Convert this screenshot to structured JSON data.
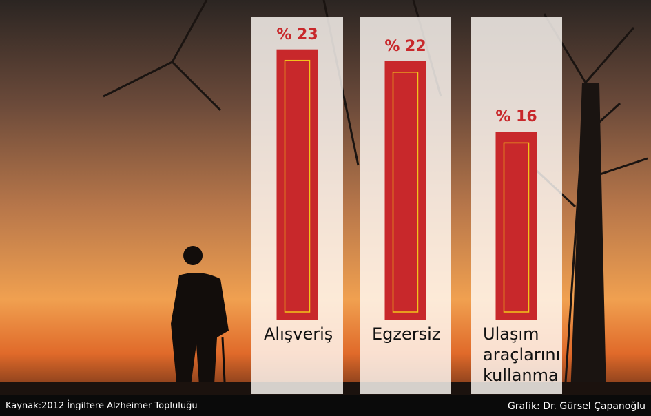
{
  "chart_data": {
    "type": "bar",
    "categories": [
      "Alışveriş",
      "Egzersiz",
      "Ulaşım araçlarını kullanma"
    ],
    "values": [
      23,
      22,
      16
    ],
    "value_labels": [
      "% 23",
      "% 22",
      "% 16"
    ],
    "color": "#c8282b",
    "source": "Kaynak:2012 İngiltere Alzheimer Topluluğu",
    "credit": "Grafik: Dr. Gürsel Çapanoğlu"
  }
}
